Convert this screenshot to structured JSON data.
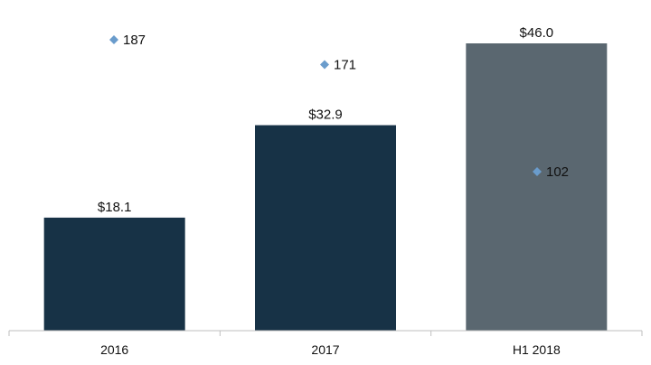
{
  "chart_data": {
    "type": "bar",
    "categories": [
      "2016",
      "2017",
      "H1 2018"
    ],
    "series": [
      {
        "name": "",
        "kind": "bar",
        "values": [
          18.1,
          32.9,
          46.0
        ],
        "value_labels": [
          "$18.1",
          "$32.9",
          "$46.0"
        ],
        "colors": [
          "#173246",
          "#173246",
          "#5a6770"
        ]
      },
      {
        "name": "",
        "kind": "scatter",
        "marker": "diamond",
        "color": "#6a9ccc",
        "values": [
          187,
          171,
          102
        ],
        "value_labels": [
          "187",
          "171",
          "102"
        ]
      }
    ],
    "title": "",
    "xlabel": "",
    "ylabel": "",
    "bar_ylim": [
      0,
      50
    ],
    "point_ylim": [
      0,
      240
    ],
    "grid": false,
    "legend": "none"
  }
}
